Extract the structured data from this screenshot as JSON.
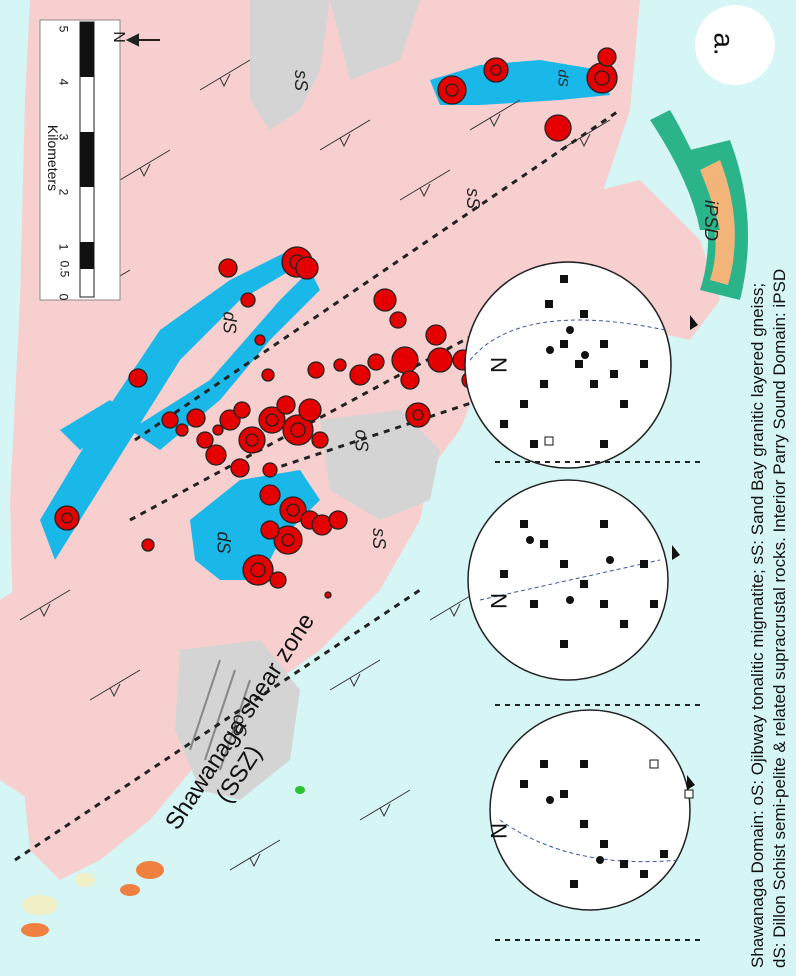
{
  "panel_label": "a.",
  "scale_bar": {
    "title": "Kilometers",
    "ticks": [
      "0",
      "0.5",
      "1",
      "2",
      "3",
      "4",
      "5"
    ],
    "north_label": "N"
  },
  "shear_zone": {
    "line1": "Shawanaga shear zone",
    "line2": "(SSZ)"
  },
  "unit_labels": {
    "oS": "oS",
    "sS": "sS",
    "dS": "dS",
    "iPSD": "iPSD"
  },
  "stereonets": {
    "north_label": "N"
  },
  "caption": {
    "line1": "Shawanaga Domain: oS: Ojibway tonalitic migmatite; sS: Sand Bay granitic layered gneiss;",
    "line2": "dS: Dillon Schist semi-pelite & related supracrustal rocks. Interior Parry Sound Domain: iPSD"
  },
  "colors": {
    "water": "#d6f5f5",
    "sand_bay_gneiss": "#f7cfcf",
    "ojibway_migmatite": "#d4d4d4",
    "dillon_schist": "#1ab8e8",
    "sample_marker": "#e40000",
    "ipsd_green": "#2bb38a",
    "ipsd_orange": "#f3b47a",
    "minor_orange": "#f08040"
  }
}
